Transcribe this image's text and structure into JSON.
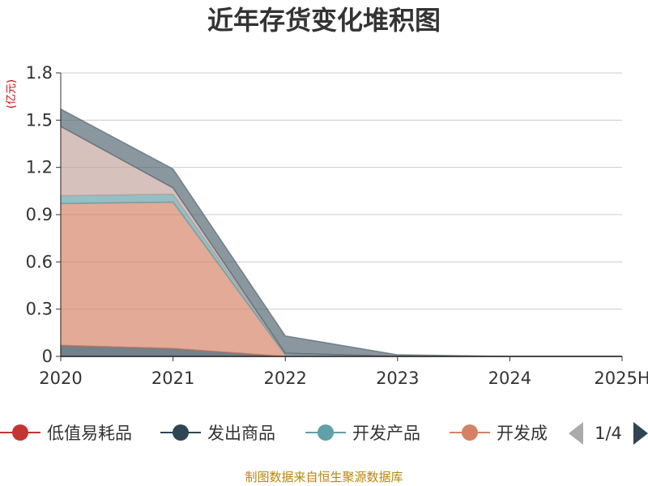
{
  "chart_data": {
    "type": "area",
    "stacked": true,
    "title": "近年存货变化堆积图",
    "ylabel": "(亿元)",
    "categories": [
      "2020",
      "2021",
      "2022",
      "2023",
      "2024",
      "2025H"
    ],
    "ylim": [
      0,
      1.8
    ],
    "yticks": [
      "0",
      "0.3",
      "0.6",
      "0.9",
      "1.2",
      "1.5",
      "1.8"
    ],
    "grid": true,
    "series": [
      {
        "name": "低值易耗品",
        "color": "#c23531",
        "values": [
          0.0,
          0.0,
          0.0,
          0.0,
          0.0,
          0.0
        ]
      },
      {
        "name": "发出商品",
        "color": "#2f4554",
        "values": [
          0.07,
          0.05,
          0.0,
          0.0,
          0.0,
          0.0
        ]
      },
      {
        "name": "开发成本",
        "color": "#d48265",
        "values": [
          0.9,
          0.93,
          0.01,
          0.0,
          0.0,
          0.0
        ]
      },
      {
        "name": "开发产品",
        "color": "#61a0a8",
        "values": [
          0.05,
          0.05,
          0.01,
          0.0,
          0.0,
          0.0
        ]
      },
      {
        "name": "",
        "color": "#c4a49e",
        "values": [
          0.44,
          0.04,
          0.0,
          0.0,
          0.0,
          0.0
        ]
      },
      {
        "name": "",
        "color": "#546570",
        "values": [
          0.11,
          0.12,
          0.11,
          0.01,
          0.0,
          0.0
        ]
      }
    ],
    "legend": {
      "position": "bottom",
      "visible_items": [
        "低值易耗品",
        "发出商品",
        "开发产品",
        "开发成"
      ],
      "page": "1/4"
    }
  },
  "source": "制图数据来自恒生聚源数据库"
}
